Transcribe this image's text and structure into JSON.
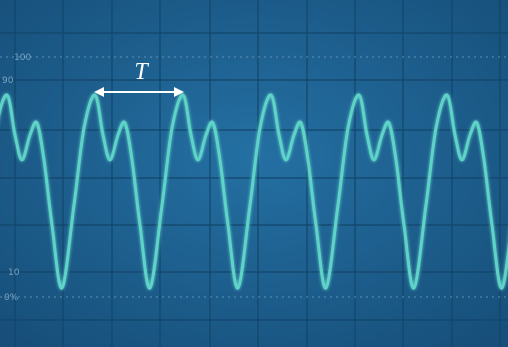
{
  "annotation": {
    "label": "T"
  },
  "graticule_labels": [
    "100",
    "90",
    "10",
    "0%"
  ]
}
